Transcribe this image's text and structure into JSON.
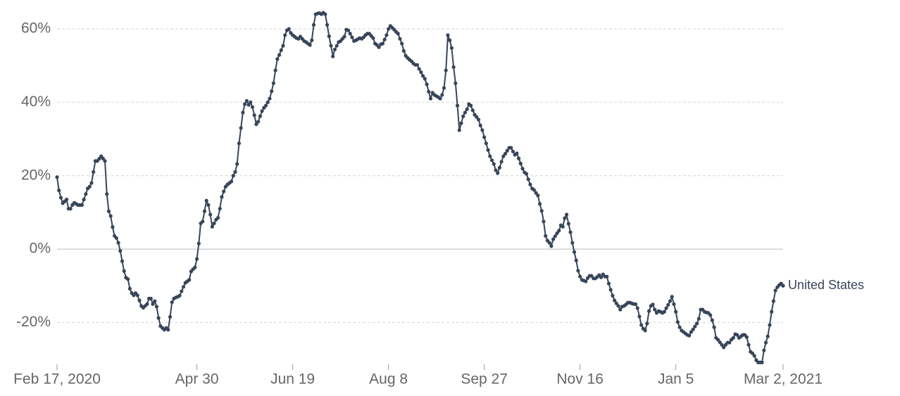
{
  "chart_data": {
    "type": "line",
    "x": [
      "2020-02-17",
      "2020-02-18",
      "2020-02-19",
      "2020-02-20",
      "2020-02-21",
      "2020-02-22",
      "2020-02-23",
      "2020-02-24",
      "2020-02-25",
      "2020-02-26",
      "2020-02-27",
      "2020-02-28",
      "2020-02-29",
      "2020-03-01",
      "2020-03-02",
      "2020-03-03",
      "2020-03-04",
      "2020-03-05",
      "2020-03-06",
      "2020-03-07",
      "2020-03-08",
      "2020-03-09",
      "2020-03-10",
      "2020-03-11",
      "2020-03-12",
      "2020-03-13",
      "2020-03-14",
      "2020-03-15",
      "2020-03-16",
      "2020-03-17",
      "2020-03-18",
      "2020-03-19",
      "2020-03-20",
      "2020-03-21",
      "2020-03-22",
      "2020-03-23",
      "2020-03-24",
      "2020-03-25",
      "2020-03-26",
      "2020-03-27",
      "2020-03-28",
      "2020-03-29",
      "2020-03-30",
      "2020-03-31",
      "2020-04-01",
      "2020-04-02",
      "2020-04-03",
      "2020-04-04",
      "2020-04-05",
      "2020-04-06",
      "2020-04-07",
      "2020-04-08",
      "2020-04-09",
      "2020-04-10",
      "2020-04-11",
      "2020-04-12",
      "2020-04-13",
      "2020-04-14",
      "2020-04-15",
      "2020-04-16",
      "2020-04-17",
      "2020-04-18",
      "2020-04-19",
      "2020-04-20",
      "2020-04-21",
      "2020-04-22",
      "2020-04-23",
      "2020-04-24",
      "2020-04-25",
      "2020-04-26",
      "2020-04-27",
      "2020-04-28",
      "2020-04-29",
      "2020-04-30",
      "2020-05-01",
      "2020-05-02",
      "2020-05-03",
      "2020-05-04",
      "2020-05-05",
      "2020-05-06",
      "2020-05-07",
      "2020-05-08",
      "2020-05-09",
      "2020-05-10",
      "2020-05-11",
      "2020-05-12",
      "2020-05-13",
      "2020-05-14",
      "2020-05-15",
      "2020-05-16",
      "2020-05-17",
      "2020-05-18",
      "2020-05-19",
      "2020-05-20",
      "2020-05-21",
      "2020-05-22",
      "2020-05-23",
      "2020-05-24",
      "2020-05-25",
      "2020-05-26",
      "2020-05-27",
      "2020-05-28",
      "2020-05-29",
      "2020-05-30",
      "2020-05-31",
      "2020-06-01",
      "2020-06-02",
      "2020-06-03",
      "2020-06-04",
      "2020-06-05",
      "2020-06-06",
      "2020-06-07",
      "2020-06-08",
      "2020-06-09",
      "2020-06-10",
      "2020-06-11",
      "2020-06-12",
      "2020-06-13",
      "2020-06-14",
      "2020-06-15",
      "2020-06-16",
      "2020-06-17",
      "2020-06-18",
      "2020-06-19",
      "2020-06-20",
      "2020-06-21",
      "2020-06-22",
      "2020-06-23",
      "2020-06-24",
      "2020-06-25",
      "2020-06-26",
      "2020-06-27",
      "2020-06-28",
      "2020-06-29",
      "2020-06-30",
      "2020-07-01",
      "2020-07-02",
      "2020-07-03",
      "2020-07-04",
      "2020-07-05",
      "2020-07-06",
      "2020-07-07",
      "2020-07-08",
      "2020-07-09",
      "2020-07-10",
      "2020-07-11",
      "2020-07-12",
      "2020-07-13",
      "2020-07-14",
      "2020-07-15",
      "2020-07-16",
      "2020-07-17",
      "2020-07-18",
      "2020-07-19",
      "2020-07-20",
      "2020-07-21",
      "2020-07-22",
      "2020-07-23",
      "2020-07-24",
      "2020-07-25",
      "2020-07-26",
      "2020-07-27",
      "2020-07-28",
      "2020-07-29",
      "2020-07-30",
      "2020-07-31",
      "2020-08-01",
      "2020-08-02",
      "2020-08-03",
      "2020-08-04",
      "2020-08-05",
      "2020-08-06",
      "2020-08-07",
      "2020-08-08",
      "2020-08-09",
      "2020-08-10",
      "2020-08-11",
      "2020-08-12",
      "2020-08-13",
      "2020-08-14",
      "2020-08-15",
      "2020-08-16",
      "2020-08-17",
      "2020-08-18",
      "2020-08-19",
      "2020-08-20",
      "2020-08-21",
      "2020-08-22",
      "2020-08-23",
      "2020-08-24",
      "2020-08-25",
      "2020-08-26",
      "2020-08-27",
      "2020-08-28",
      "2020-08-29",
      "2020-08-30",
      "2020-08-31",
      "2020-09-01",
      "2020-09-02",
      "2020-09-03",
      "2020-09-04",
      "2020-09-05",
      "2020-09-06",
      "2020-09-07",
      "2020-09-08",
      "2020-09-09",
      "2020-09-10",
      "2020-09-11",
      "2020-09-12",
      "2020-09-13",
      "2020-09-14",
      "2020-09-15",
      "2020-09-16",
      "2020-09-17",
      "2020-09-18",
      "2020-09-19",
      "2020-09-20",
      "2020-09-21",
      "2020-09-22",
      "2020-09-23",
      "2020-09-24",
      "2020-09-25",
      "2020-09-26",
      "2020-09-27",
      "2020-09-28",
      "2020-09-29",
      "2020-09-30",
      "2020-10-01",
      "2020-10-02",
      "2020-10-03",
      "2020-10-04",
      "2020-10-05",
      "2020-10-06",
      "2020-10-07",
      "2020-10-08",
      "2020-10-09",
      "2020-10-10",
      "2020-10-11",
      "2020-10-12",
      "2020-10-13",
      "2020-10-14",
      "2020-10-15",
      "2020-10-16",
      "2020-10-17",
      "2020-10-18",
      "2020-10-19",
      "2020-10-20",
      "2020-10-21",
      "2020-10-22",
      "2020-10-23",
      "2020-10-24",
      "2020-10-25",
      "2020-10-26",
      "2020-10-27",
      "2020-10-28",
      "2020-10-29",
      "2020-10-30",
      "2020-10-31",
      "2020-11-01",
      "2020-11-02",
      "2020-11-03",
      "2020-11-04",
      "2020-11-05",
      "2020-11-06",
      "2020-11-07",
      "2020-11-08",
      "2020-11-09",
      "2020-11-10",
      "2020-11-11",
      "2020-11-12",
      "2020-11-13",
      "2020-11-14",
      "2020-11-15",
      "2020-11-16",
      "2020-11-17",
      "2020-11-18",
      "2020-11-19",
      "2020-11-20",
      "2020-11-21",
      "2020-11-22",
      "2020-11-23",
      "2020-11-24",
      "2020-11-25",
      "2020-11-26",
      "2020-11-27",
      "2020-11-28",
      "2020-11-29",
      "2020-11-30",
      "2020-12-01",
      "2020-12-02",
      "2020-12-03",
      "2020-12-04",
      "2020-12-05",
      "2020-12-06",
      "2020-12-07",
      "2020-12-08",
      "2020-12-09",
      "2020-12-10",
      "2020-12-11",
      "2020-12-12",
      "2020-12-13",
      "2020-12-14",
      "2020-12-15",
      "2020-12-16",
      "2020-12-17",
      "2020-12-18",
      "2020-12-19",
      "2020-12-20",
      "2020-12-21",
      "2020-12-22",
      "2020-12-23",
      "2020-12-24",
      "2020-12-25",
      "2020-12-26",
      "2020-12-27",
      "2020-12-28",
      "2020-12-29",
      "2020-12-30",
      "2020-12-31",
      "2021-01-01",
      "2021-01-02",
      "2021-01-03",
      "2021-01-04",
      "2021-01-05",
      "2021-01-06",
      "2021-01-07",
      "2021-01-08",
      "2021-01-09",
      "2021-01-10",
      "2021-01-11",
      "2021-01-12",
      "2021-01-13",
      "2021-01-14",
      "2021-01-15",
      "2021-01-16",
      "2021-01-17",
      "2021-01-18",
      "2021-01-19",
      "2021-01-20",
      "2021-01-21",
      "2021-01-22",
      "2021-01-23",
      "2021-01-24",
      "2021-01-25",
      "2021-01-26",
      "2021-01-27",
      "2021-01-28",
      "2021-01-29",
      "2021-01-30",
      "2021-01-31",
      "2021-02-01",
      "2021-02-02",
      "2021-02-03",
      "2021-02-04",
      "2021-02-05",
      "2021-02-06",
      "2021-02-07",
      "2021-02-08",
      "2021-02-09",
      "2021-02-10",
      "2021-02-11",
      "2021-02-12",
      "2021-02-13",
      "2021-02-14",
      "2021-02-15",
      "2021-02-16",
      "2021-02-17",
      "2021-02-18",
      "2021-02-19",
      "2021-02-20",
      "2021-02-21",
      "2021-02-22",
      "2021-02-23",
      "2021-02-24",
      "2021-02-25",
      "2021-02-26",
      "2021-02-27",
      "2021-02-28",
      "2021-03-01",
      "2021-03-02"
    ],
    "series": [
      {
        "name": "United States",
        "color": "#374559",
        "values": [
          19.6,
          16,
          14,
          12.5,
          13,
          13.5,
          11,
          11,
          12,
          12.6,
          12.3,
          12,
          12,
          12,
          13.5,
          15,
          16.5,
          17,
          18,
          21,
          24,
          24,
          24.6,
          25.3,
          24.7,
          24,
          15,
          10.3,
          9,
          6,
          3.6,
          3,
          1.7,
          -0.5,
          -3.3,
          -6,
          -7.8,
          -8.2,
          -10.8,
          -12,
          -12.6,
          -12,
          -12.6,
          -14,
          -15.5,
          -16,
          -15.5,
          -15,
          -13.5,
          -13.5,
          -15,
          -14.2,
          -15.7,
          -18.8,
          -21,
          -21.5,
          -22,
          -21.5,
          -22,
          -18.5,
          -14.5,
          -13.5,
          -13.2,
          -13,
          -12.7,
          -11.5,
          -10.3,
          -9.2,
          -8.8,
          -8.4,
          -6.1,
          -5.5,
          -5,
          -2.7,
          1.5,
          7,
          7.5,
          10.3,
          13.2,
          12,
          9.4,
          6.1,
          7,
          8,
          8.5,
          11,
          14.2,
          15.7,
          17,
          17.6,
          18,
          18.4,
          20,
          21,
          23.2,
          28.8,
          33,
          37.2,
          39.5,
          40.4,
          39.3,
          40,
          38.7,
          36.5,
          34,
          34.7,
          36.2,
          37.6,
          38.5,
          39.1,
          40,
          41,
          43,
          45.2,
          48.7,
          51.8,
          52.9,
          54.2,
          55.4,
          58.3,
          59.6,
          60,
          58.9,
          58.3,
          57.9,
          57.5,
          57.3,
          57.9,
          57.3,
          56.7,
          56.4,
          56,
          55.6,
          56.9,
          61.1,
          64,
          64.2,
          64.3,
          64,
          64.4,
          64,
          61.1,
          58,
          55.4,
          52.5,
          54.4,
          55.4,
          56.4,
          56.7,
          57.3,
          57.9,
          59.8,
          59.6,
          58.7,
          57.7,
          56.7,
          56.9,
          57.2,
          57.5,
          57.3,
          57.7,
          58.3,
          58.7,
          58.7,
          58.1,
          57.5,
          56,
          55.6,
          55,
          55.8,
          56,
          57.1,
          58.3,
          60,
          60.8,
          60.3,
          59.8,
          59.2,
          58.7,
          57.3,
          56,
          54,
          52.7,
          52.1,
          51.6,
          51.2,
          50.6,
          50.2,
          50.2,
          49.1,
          48.2,
          47.2,
          46.4,
          44.9,
          42.9,
          41,
          42.6,
          42,
          41.7,
          41.4,
          41,
          42,
          43.9,
          48.7,
          58.3,
          56.9,
          54.8,
          49.6,
          45.2,
          39.1,
          32.4,
          34.3,
          36.2,
          37.2,
          38.1,
          39.5,
          39.1,
          37.8,
          36.6,
          36,
          35.3,
          33.7,
          32.4,
          30.5,
          28.8,
          27,
          25.3,
          24.2,
          23.2,
          21.5,
          20.7,
          22.2,
          23.8,
          25.3,
          26,
          26.8,
          27.6,
          27.6,
          26.6,
          25.7,
          26.1,
          24.7,
          23.3,
          21.9,
          20.9,
          20.5,
          19,
          17.6,
          16.5,
          16.1,
          15.3,
          14.6,
          12.3,
          10.4,
          7.5,
          3.6,
          2.3,
          1.7,
          0.8,
          2.7,
          3.5,
          4.3,
          5,
          6.5,
          6.1,
          8.4,
          9.4,
          6.9,
          4.6,
          1.7,
          -0.8,
          -3.1,
          -5.9,
          -7.5,
          -8.4,
          -8.6,
          -8.8,
          -7.9,
          -7.3,
          -7.3,
          -8,
          -8,
          -7.6,
          -7.1,
          -7.7,
          -6.9,
          -7.5,
          -7.5,
          -9.4,
          -11.1,
          -12.7,
          -14,
          -14.8,
          -15.5,
          -16.5,
          -15.7,
          -15.5,
          -15.1,
          -14.6,
          -14.6,
          -14.8,
          -15,
          -15,
          -16.1,
          -18.4,
          -20.7,
          -21.7,
          -22.2,
          -20.3,
          -16.9,
          -15.5,
          -15.1,
          -16.5,
          -17.4,
          -16.9,
          -17.1,
          -17.4,
          -17.1,
          -16.1,
          -15.2,
          -14.2,
          -13,
          -15,
          -17.1,
          -19.9,
          -21.3,
          -22.2,
          -22.6,
          -23,
          -23.4,
          -23.6,
          -22.6,
          -21.9,
          -21.1,
          -20.3,
          -19,
          -16.5,
          -16.5,
          -17.1,
          -17.3,
          -17.4,
          -18,
          -19.4,
          -21.3,
          -24.2,
          -24.7,
          -25.4,
          -26.1,
          -26.8,
          -26.1,
          -25.5,
          -25.5,
          -24.7,
          -24.2,
          -23.2,
          -23.4,
          -24.2,
          -23.8,
          -23.4,
          -23.4,
          -24,
          -26.1,
          -28,
          -28.4,
          -29.1,
          -30.3,
          -30.9,
          -30.9,
          -30.9,
          -27.6,
          -25.5,
          -23.8,
          -20.7,
          -17.1,
          -14.2,
          -11.3,
          -10.4,
          -9.8,
          -9.4,
          -10
        ]
      }
    ],
    "xlim": [
      "2020-02-17",
      "2021-03-02"
    ],
    "xticks": [
      {
        "value": "2020-02-17",
        "label": "Feb 17, 2020"
      },
      {
        "value": "2020-04-30",
        "label": "Apr 30"
      },
      {
        "value": "2020-06-19",
        "label": "Jun 19"
      },
      {
        "value": "2020-08-08",
        "label": "Aug 8"
      },
      {
        "value": "2020-09-27",
        "label": "Sep 27"
      },
      {
        "value": "2020-11-16",
        "label": "Nov 16"
      },
      {
        "value": "2021-01-05",
        "label": "Jan 5"
      },
      {
        "value": "2021-03-02",
        "label": "Mar 2, 2021"
      }
    ],
    "ylim": [
      -32,
      65
    ],
    "yticks": [
      {
        "value": -20,
        "label": "-20%"
      },
      {
        "value": 0,
        "label": "0%"
      },
      {
        "value": 20,
        "label": "20%"
      },
      {
        "value": 40,
        "label": "40%"
      },
      {
        "value": 60,
        "label": "60%"
      }
    ],
    "grid": true
  }
}
